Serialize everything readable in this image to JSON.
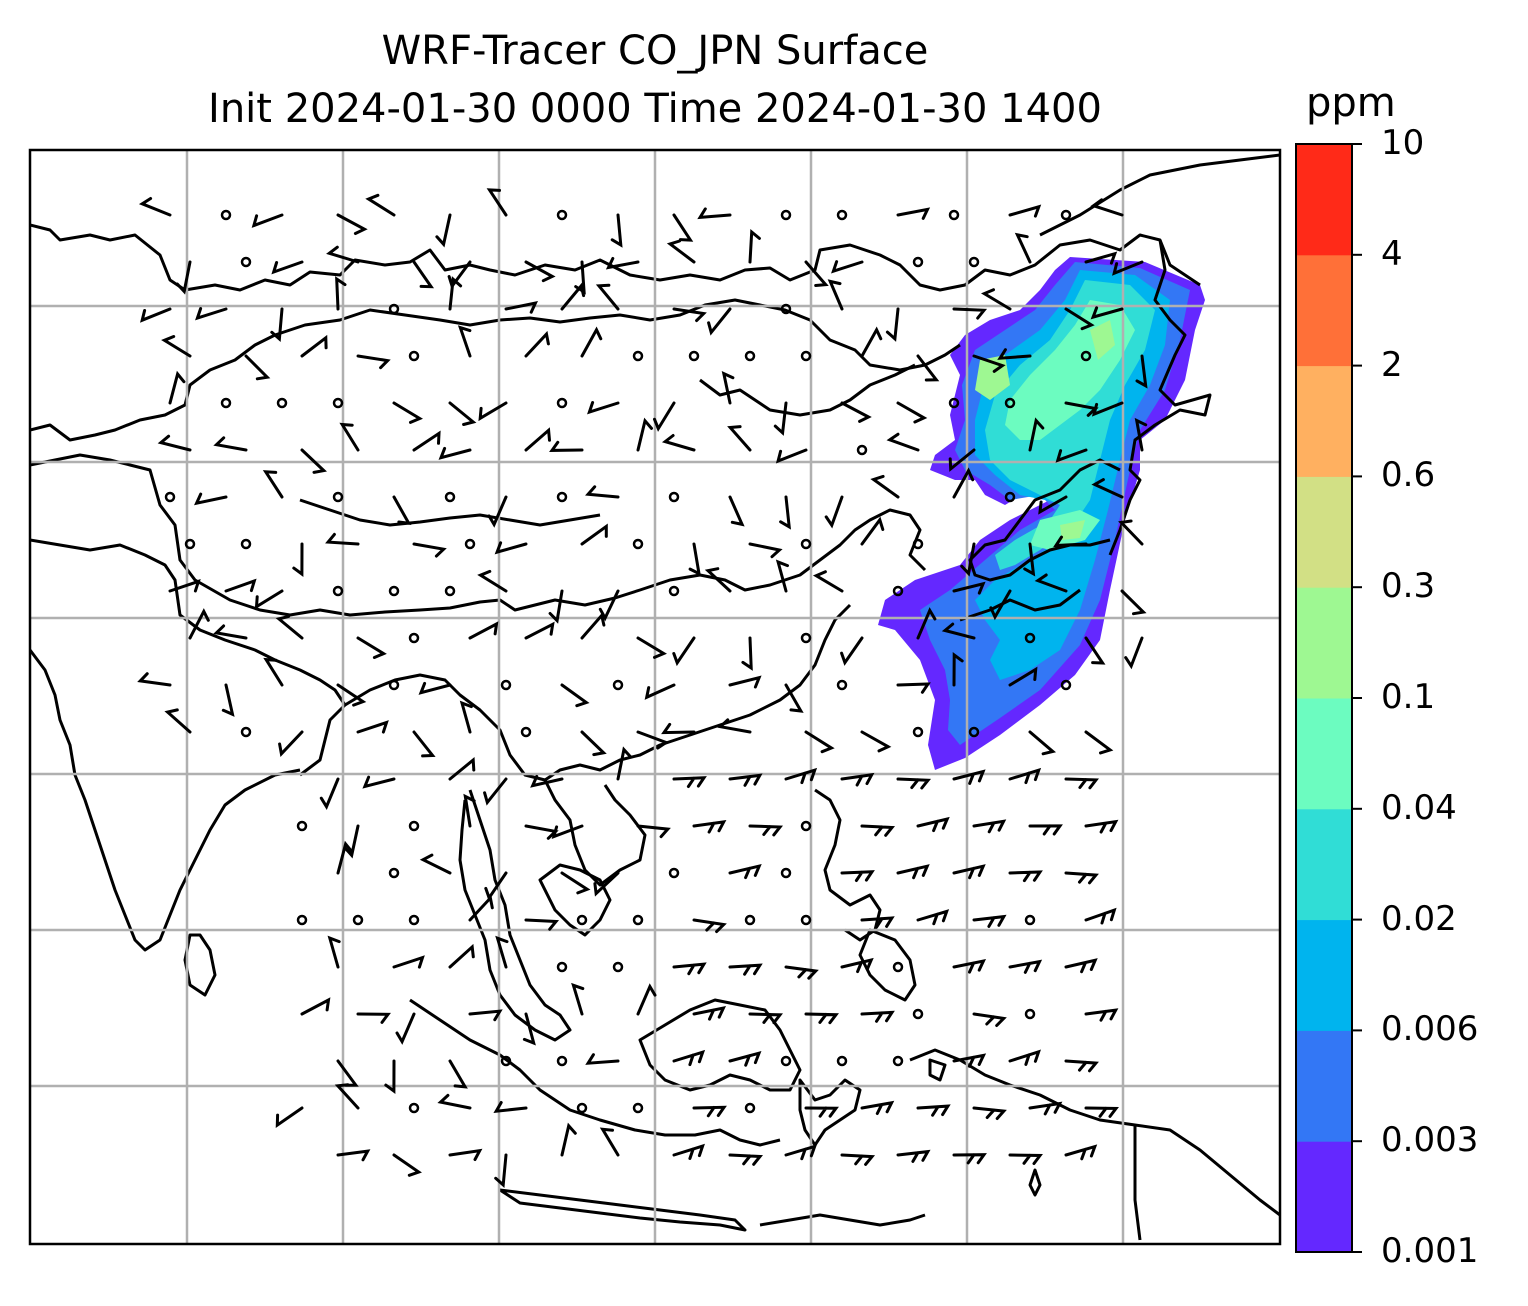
{
  "title": {
    "line1": "WRF-Tracer CO_JPN Surface",
    "line2": "Init 2024-01-30 0000 Time 2024-01-30 1400"
  },
  "colorbar": {
    "unit": "ppm",
    "ticks": [
      "0.001",
      "0.003",
      "0.006",
      "0.02",
      "0.04",
      "0.1",
      "0.3",
      "0.6",
      "2",
      "4",
      "10"
    ],
    "colors": [
      "#6428ff",
      "#3377f5",
      "#00b4ee",
      "#30ddd6",
      "#6cfcc0",
      "#9ef892",
      "#d2e085",
      "#ffb060",
      "#ff7038",
      "#ff2a18"
    ]
  },
  "map": {
    "gridlines": true,
    "wind_barbs": true,
    "tracer": "CO_JPN"
  }
}
